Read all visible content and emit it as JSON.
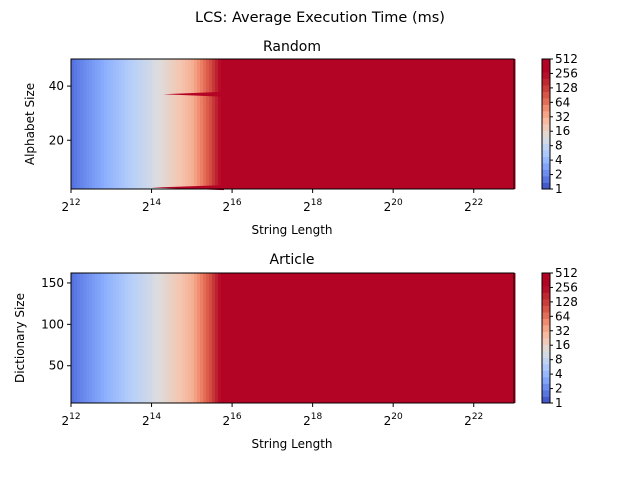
{
  "suptitle": "LCS: Average Execution Time (ms)",
  "colorbar_ticks": [
    "1",
    "2",
    "4",
    "8",
    "16",
    "32",
    "64",
    "128",
    "256",
    "512"
  ],
  "chart_data": [
    {
      "type": "heatmap",
      "title": "Random",
      "xlabel": "String Length",
      "ylabel": "Alphabet Size",
      "x_scale": "log2",
      "xlim": [
        4096,
        8388608
      ],
      "x_ticks": [
        {
          "base": "2",
          "exp": "12"
        },
        {
          "base": "2",
          "exp": "14"
        },
        {
          "base": "2",
          "exp": "16"
        },
        {
          "base": "2",
          "exp": "18"
        },
        {
          "base": "2",
          "exp": "20"
        },
        {
          "base": "2",
          "exp": "22"
        }
      ],
      "ylim": [
        2,
        50
      ],
      "y_ticks": [
        "20",
        "40"
      ],
      "colorbar_scale": "log2",
      "colorbar_range": [
        1,
        512
      ],
      "colormap": "coolwarm",
      "profile_x": [
        4096,
        8192,
        16384,
        32768,
        45000,
        60000,
        8388608
      ],
      "profile_value_ms": [
        1.5,
        4,
        10,
        30,
        100,
        512,
        512
      ],
      "annotation_streaks": [
        {
          "y": 37,
          "x_start": 20000,
          "x_end": 57000
        },
        {
          "y": 2.5,
          "x_start": 16384,
          "x_end": 57000
        }
      ]
    },
    {
      "type": "heatmap",
      "title": "Article",
      "xlabel": "String Length",
      "ylabel": "Dictionary Size",
      "x_scale": "log2",
      "xlim": [
        4096,
        8388608
      ],
      "x_ticks": [
        {
          "base": "2",
          "exp": "12"
        },
        {
          "base": "2",
          "exp": "14"
        },
        {
          "base": "2",
          "exp": "16"
        },
        {
          "base": "2",
          "exp": "18"
        },
        {
          "base": "2",
          "exp": "20"
        },
        {
          "base": "2",
          "exp": "22"
        }
      ],
      "ylim": [
        5,
        162
      ],
      "y_ticks": [
        "50",
        "100",
        "150"
      ],
      "colorbar_scale": "log2",
      "colorbar_range": [
        1,
        512
      ],
      "colormap": "coolwarm",
      "profile_x": [
        4096,
        8192,
        16384,
        32768,
        45000,
        60000,
        8388608
      ],
      "profile_value_ms": [
        1.5,
        4,
        10,
        30,
        100,
        512,
        512
      ]
    }
  ]
}
